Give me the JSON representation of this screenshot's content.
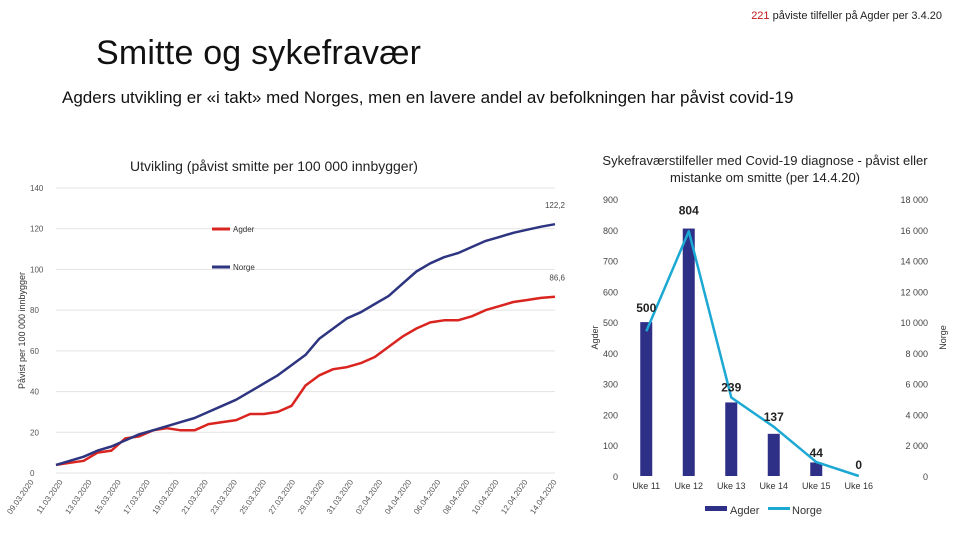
{
  "header": {
    "count": "221",
    "note": " påviste tilfeller på Agder per 3.4.20",
    "title": "Smitte og sykefravær",
    "subtitle": "Agders utvikling er «i takt» med Norges, men en lavere andel av befolkningen har påvist covid-19"
  },
  "colors": {
    "agder_line": "#d9241f",
    "norge_line": "#2e3580",
    "bar": "#2e2f86",
    "norge_sick_line": "#1ba8d3",
    "accent_red": "#c0151b"
  },
  "chart_data": [
    {
      "type": "line",
      "title": "Utvikling (påvist smitte per 100 000 innbygger)",
      "xlabel": "",
      "ylabel": "Påvist per 100 000 innbygger",
      "ylim": [
        0,
        140
      ],
      "yticks": [
        0,
        20,
        40,
        60,
        80,
        100,
        120,
        140
      ],
      "x_tick_labels": [
        "09.03.2020",
        "11.03.2020",
        "13.03.2020",
        "15.03.2020",
        "17.03.2020",
        "19.03.2020",
        "21.03.2020",
        "23.03.2020",
        "25.03.2020",
        "27.03.2020",
        "29.03.2020",
        "31.03.2020",
        "02.04.2020",
        "04.04.2020",
        "06.04.2020",
        "08.04.2020",
        "10.04.2020",
        "12.04.2020",
        "14.04.2020"
      ],
      "legend": "upper-left",
      "series": [
        {
          "name": "Agder",
          "end_label": "86,6",
          "values": [
            4,
            5,
            6,
            10,
            11,
            17,
            18,
            21,
            22,
            21,
            21,
            24,
            25,
            26,
            29,
            29,
            30,
            33,
            43,
            48,
            51,
            52,
            54,
            57,
            62,
            67,
            71,
            74,
            75,
            75,
            77,
            80,
            82,
            84,
            85,
            86,
            86.6
          ]
        },
        {
          "name": "Norge",
          "end_label": "122,2",
          "values": [
            4,
            6,
            8,
            11,
            13,
            16,
            19,
            21,
            23,
            25,
            27,
            30,
            33,
            36,
            40,
            44,
            48,
            53,
            58,
            66,
            71,
            76,
            79,
            83,
            87,
            93,
            99,
            103,
            106,
            108,
            111,
            114,
            116,
            118,
            119.5,
            121,
            122.2
          ]
        }
      ]
    },
    {
      "type": "bar",
      "title": "Sykefraværstilfeller med Covid-19 diagnose - påvist eller mistanke om smitte (per 14.4.20)",
      "categories": [
        "Uke 11",
        "Uke 12",
        "Uke 13",
        "Uke 14",
        "Uke 15",
        "Uke 16"
      ],
      "ylabel": "Agder",
      "y2label": "Norge",
      "ylim": [
        0,
        900
      ],
      "y2lim": [
        0,
        18000
      ],
      "yticks": [
        0,
        100,
        200,
        300,
        400,
        500,
        600,
        700,
        800,
        900
      ],
      "y2ticks": [
        "0",
        "2 000",
        "4 000",
        "6 000",
        "8 000",
        "10 000",
        "12 000",
        "14 000",
        "16 000",
        "18 000"
      ],
      "series": [
        {
          "name": "Agder",
          "kind": "bar",
          "axis": "left",
          "values": [
            500,
            804,
            239,
            137,
            44,
            0
          ],
          "labels": [
            "500",
            "804",
            "239",
            "137",
            "44",
            "0"
          ]
        },
        {
          "name": "Norge",
          "kind": "line",
          "axis": "right",
          "values": [
            9400,
            15900,
            5100,
            3200,
            900,
            0
          ]
        }
      ],
      "legend": "bottom"
    }
  ]
}
